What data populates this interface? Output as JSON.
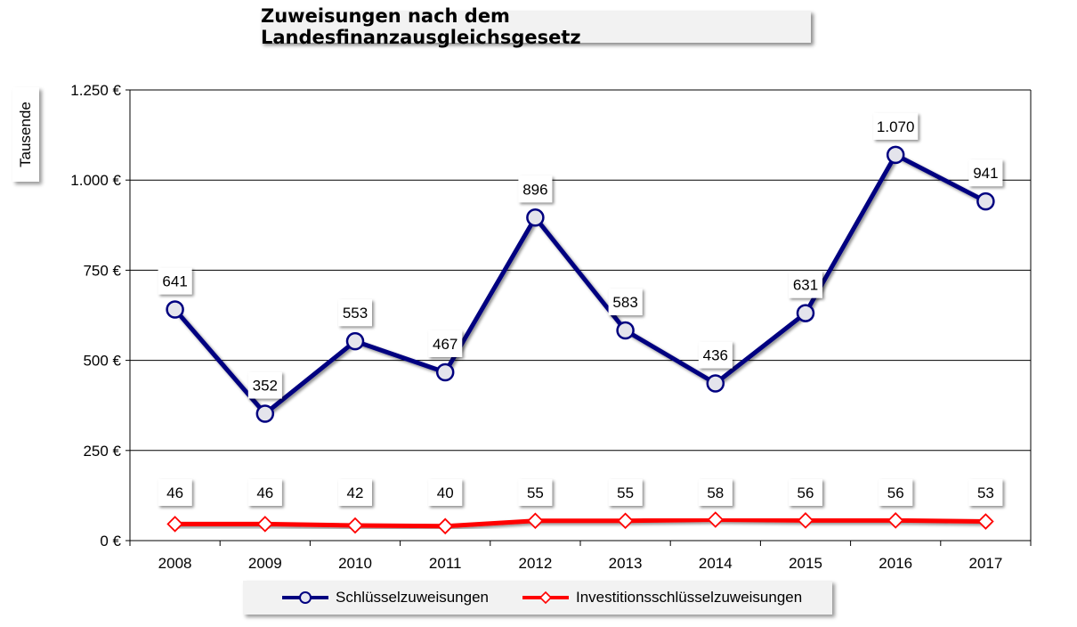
{
  "title": "Zuweisungen nach dem Landesfinanzausgleichsgesetz",
  "chart_data": {
    "type": "line",
    "title": "Zuweisungen nach dem Landesfinanzausgleichsgesetz",
    "xlabel": "",
    "ylabel": "Tausende",
    "categories": [
      "2008",
      "2009",
      "2010",
      "2011",
      "2012",
      "2013",
      "2014",
      "2015",
      "2016",
      "2017"
    ],
    "ylim": [
      0,
      1250
    ],
    "yticks": [
      0,
      250,
      500,
      750,
      1000,
      1250
    ],
    "ytick_labels": [
      "0 €",
      "250 €",
      "500 €",
      "750 €",
      "1.000 €",
      "1.250 €"
    ],
    "grid": true,
    "legend_position": "bottom",
    "series": [
      {
        "name": "Schlüsselzuweisungen",
        "color": "#000080",
        "marker": "circle",
        "values": [
          641,
          352,
          553,
          467,
          896,
          583,
          436,
          631,
          1070,
          941
        ],
        "labels": [
          "641",
          "352",
          "553",
          "467",
          "896",
          "583",
          "436",
          "631",
          "1.070",
          "941"
        ]
      },
      {
        "name": "Investitionsschlüsselzuweisungen",
        "color": "#ff0000",
        "marker": "diamond",
        "values": [
          46,
          46,
          42,
          40,
          55,
          55,
          58,
          56,
          56,
          53
        ],
        "labels": [
          "46",
          "46",
          "42",
          "40",
          "55",
          "55",
          "58",
          "56",
          "56",
          "53"
        ]
      }
    ]
  }
}
